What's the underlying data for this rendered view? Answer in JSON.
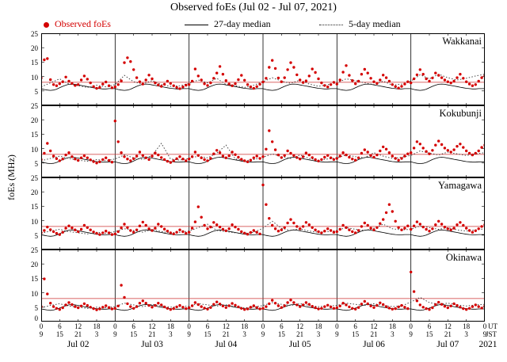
{
  "title": "Observed foEs (Jul 02 - Jul 07, 2021)",
  "legend": {
    "observed": "Observed foEs",
    "median27": "27-day median",
    "median5": "5-day median"
  },
  "y_axis": {
    "label": "foEs (MHz)",
    "ticks": [
      25,
      20,
      15,
      10,
      5
    ],
    "bottom_label": "0"
  },
  "x_axis": {
    "ut_ticks": [
      0,
      6,
      12,
      18
    ],
    "jst_ticks": [
      9,
      15,
      21,
      3
    ],
    "days": [
      "Jul 02",
      "Jul 03",
      "Jul 04",
      "Jul 05",
      "Jul 06",
      "Jul 07"
    ],
    "unit_top": "UT",
    "unit_bottom": "JST",
    "year": "2021"
  },
  "colors": {
    "observed": "#d40000",
    "median27": "#000000",
    "median5": "#333333",
    "threshold": "#cc3333"
  },
  "chart_data": {
    "type": "scatter",
    "title": "Observed foEs (Jul 02 - Jul 07, 2021)",
    "ylabel": "foEs (MHz)",
    "ylim": [
      0,
      25
    ],
    "x_range_hours": [
      0,
      144
    ],
    "x_days": [
      "Jul 02",
      "Jul 03",
      "Jul 04",
      "Jul 05",
      "Jul 06",
      "Jul 07"
    ],
    "threshold_line_mhz": 8,
    "legend_position": "top",
    "grid": "vertical lines at day boundaries",
    "panels": [
      {
        "station": "Wakkanai",
        "observed_hourly": [
          9.5,
          15.8,
          16.2,
          8.9,
          7.2,
          6.8,
          7.5,
          8.2,
          9.8,
          8.4,
          7.6,
          6.9,
          7.2,
          8.8,
          10.2,
          9.1,
          7.8,
          6.5,
          5.9,
          6.2,
          7.4,
          8.1,
          6.8,
          6.1,
          6.4,
          7.2,
          8.5,
          14.8,
          16.5,
          15.2,
          12.4,
          9.6,
          8.2,
          7.4,
          8.8,
          10.5,
          9.2,
          7.8,
          7.1,
          6.6,
          7.3,
          8.4,
          7.6,
          6.8,
          6.2,
          5.8,
          6.4,
          7.0,
          7.2,
          8.4,
          12.6,
          10.2,
          8.8,
          7.5,
          6.9,
          7.8,
          9.4,
          11.2,
          13.5,
          10.8,
          8.6,
          7.4,
          6.8,
          7.5,
          8.9,
          10.4,
          8.7,
          7.2,
          6.4,
          5.9,
          6.5,
          7.3,
          8.1,
          9.4,
          13.2,
          15.6,
          12.8,
          9.5,
          8.2,
          9.6,
          12.4,
          14.8,
          13.2,
          10.6,
          8.8,
          7.9,
          8.5,
          10.2,
          12.6,
          11.4,
          9.2,
          7.8,
          6.9,
          6.4,
          7.2,
          8.0,
          7.4,
          8.8,
          11.5,
          13.8,
          10.4,
          8.6,
          7.5,
          8.4,
          10.8,
          12.5,
          11.2,
          9.4,
          8.2,
          7.6,
          8.8,
          10.5,
          9.6,
          8.4,
          7.2,
          6.5,
          6.0,
          6.6,
          7.4,
          8.2,
          7.8,
          9.2,
          10.6,
          12.4,
          10.8,
          9.2,
          8.4,
          9.5,
          11.2,
          10.4,
          9.6,
          8.8,
          8.2,
          7.8,
          8.4,
          9.6,
          10.8,
          9.4,
          8.2,
          7.4,
          6.8,
          7.2,
          8.4,
          9.6,
          10.2
        ],
        "median27_diurnal": [
          5.8,
          5.5,
          5.3,
          5.2,
          5.3,
          5.6,
          6.1,
          6.6,
          7.0,
          7.3,
          7.4,
          7.3,
          7.1,
          6.9,
          6.7,
          6.5,
          6.3,
          6.1,
          5.9,
          5.8,
          5.7,
          5.7,
          5.8,
          5.8
        ],
        "median5_3hourly": [
          6.4,
          7.8,
          9.2,
          7.4,
          6.8,
          6.2,
          7.0,
          6.4,
          7.2,
          10.4,
          8.2,
          7.4,
          8.6,
          7.2,
          6.6,
          6.8,
          7.6,
          8.8,
          7.8,
          9.4,
          7.2,
          6.8,
          6.2,
          7.0,
          8.2,
          9.6,
          8.4,
          7.6,
          8.8,
          7.4,
          6.6,
          7.2,
          7.8,
          9.2,
          8.6,
          7.8,
          7.2,
          8.4,
          7.0,
          7.4,
          8.4,
          10.6,
          9.2,
          10.8,
          9.6,
          8.8,
          9.4,
          10.2,
          10.8
        ]
      },
      {
        "station": "Kokubunji",
        "observed_hourly": [
          6.2,
          8.4,
          11.8,
          9.2,
          7.4,
          6.5,
          5.8,
          6.4,
          7.8,
          8.6,
          7.2,
          6.4,
          5.9,
          6.8,
          7.5,
          6.8,
          6.1,
          5.5,
          5.0,
          5.4,
          6.2,
          6.8,
          5.9,
          5.3,
          19.6,
          12.4,
          8.6,
          7.2,
          6.4,
          5.8,
          6.5,
          7.4,
          8.8,
          7.6,
          6.8,
          6.2,
          7.4,
          8.5,
          7.8,
          6.9,
          6.2,
          5.6,
          5.2,
          5.8,
          6.5,
          7.2,
          6.4,
          5.8,
          6.4,
          7.2,
          8.8,
          7.6,
          6.8,
          6.2,
          5.8,
          6.6,
          8.2,
          9.4,
          8.6,
          7.4,
          6.8,
          7.5,
          8.8,
          7.9,
          7.0,
          6.3,
          5.8,
          5.4,
          6.0,
          6.8,
          7.4,
          6.6,
          7.2,
          9.8,
          16.2,
          12.4,
          9.6,
          7.8,
          6.9,
          7.6,
          9.2,
          8.4,
          7.6,
          6.9,
          6.4,
          7.2,
          8.5,
          7.8,
          6.9,
          6.2,
          5.7,
          6.2,
          7.0,
          7.6,
          6.8,
          6.2,
          6.6,
          7.4,
          8.6,
          7.8,
          7.0,
          6.4,
          6.0,
          6.8,
          8.4,
          9.6,
          8.8,
          7.6,
          7.0,
          7.8,
          9.2,
          10.6,
          9.8,
          8.6,
          7.4,
          6.6,
          6.0,
          6.6,
          7.4,
          8.2,
          8.6,
          10.2,
          12.4,
          11.6,
          10.2,
          9.0,
          8.2,
          9.4,
          11.2,
          12.6,
          11.4,
          10.2,
          9.4,
          8.8,
          9.6,
          10.8,
          11.6,
          10.4,
          9.2,
          8.4,
          7.8,
          8.4,
          9.2,
          10.4,
          11.2
        ],
        "median27_diurnal": [
          5.4,
          5.1,
          4.9,
          4.8,
          4.9,
          5.2,
          5.7,
          6.2,
          6.6,
          6.9,
          7.0,
          6.9,
          6.7,
          6.5,
          6.3,
          6.1,
          5.9,
          5.7,
          5.5,
          5.4,
          5.3,
          5.3,
          5.4,
          5.4
        ],
        "median5_3hourly": [
          5.8,
          6.6,
          7.4,
          6.6,
          6.0,
          5.6,
          6.2,
          5.8,
          6.4,
          7.8,
          6.8,
          6.2,
          7.6,
          11.8,
          6.4,
          6.0,
          6.6,
          7.4,
          6.8,
          8.4,
          11.2,
          6.4,
          5.8,
          6.2,
          7.0,
          8.2,
          7.2,
          6.6,
          7.8,
          6.6,
          6.0,
          6.4,
          6.8,
          7.8,
          7.2,
          6.8,
          8.6,
          7.4,
          6.6,
          7.0,
          7.6,
          9.2,
          8.4,
          7.8,
          8.8,
          8.2,
          7.6,
          8.2,
          8.6
        ]
      },
      {
        "station": "Yamagawa",
        "observed_hourly": [
          5.8,
          6.6,
          7.8,
          6.9,
          6.2,
          5.6,
          5.2,
          6.0,
          7.4,
          8.2,
          7.5,
          6.8,
          6.2,
          7.0,
          8.4,
          7.6,
          6.8,
          6.1,
          5.6,
          5.2,
          5.8,
          6.4,
          5.8,
          5.2,
          5.4,
          6.2,
          7.5,
          8.8,
          7.6,
          6.6,
          6.0,
          6.8,
          8.2,
          9.5,
          8.4,
          7.2,
          6.6,
          7.4,
          8.8,
          8.0,
          7.1,
          6.4,
          5.8,
          5.4,
          6.0,
          6.8,
          6.2,
          5.6,
          6.0,
          7.4,
          9.6,
          14.8,
          11.2,
          8.4,
          7.2,
          7.8,
          9.4,
          8.6,
          7.8,
          7.0,
          6.5,
          7.2,
          8.6,
          7.8,
          7.0,
          6.2,
          5.7,
          5.3,
          5.9,
          6.6,
          6.0,
          5.4,
          22.4,
          15.6,
          10.8,
          8.4,
          7.2,
          6.4,
          6.8,
          7.6,
          9.2,
          10.4,
          9.2,
          8.0,
          7.2,
          8.0,
          9.4,
          8.6,
          7.6,
          6.8,
          6.2,
          5.8,
          6.4,
          7.2,
          6.6,
          6.0,
          6.2,
          7.0,
          8.4,
          7.6,
          6.8,
          6.2,
          5.8,
          6.6,
          8.0,
          9.2,
          8.4,
          7.4,
          6.8,
          7.6,
          9.0,
          10.4,
          12.8,
          15.6,
          13.2,
          9.8,
          7.6,
          6.8,
          7.4,
          8.2,
          7.0,
          8.2,
          9.6,
          8.8,
          7.8,
          7.0,
          6.4,
          7.2,
          8.6,
          9.8,
          8.8,
          7.8,
          7.2,
          6.8,
          7.4,
          8.6,
          9.4,
          8.4,
          7.4,
          6.6,
          6.0,
          6.5,
          7.2,
          8.0,
          8.6
        ],
        "median27_diurnal": [
          5.2,
          4.9,
          4.7,
          4.6,
          4.7,
          5.0,
          5.5,
          6.0,
          6.4,
          6.7,
          6.8,
          6.7,
          6.5,
          6.3,
          6.1,
          5.9,
          5.7,
          5.5,
          5.3,
          5.2,
          5.1,
          5.1,
          5.2,
          5.2
        ],
        "median5_3hourly": [
          5.6,
          6.4,
          7.0,
          6.2,
          5.8,
          5.4,
          6.0,
          5.6,
          6.2,
          7.2,
          6.6,
          6.0,
          7.0,
          6.2,
          5.8,
          6.0,
          6.4,
          7.6,
          8.8,
          6.6,
          6.2,
          5.8,
          5.6,
          6.0,
          7.4,
          9.8,
          7.4,
          6.6,
          7.2,
          6.4,
          6.0,
          6.2,
          6.6,
          7.6,
          7.0,
          6.6,
          7.4,
          8.8,
          7.2,
          6.8,
          7.0,
          8.2,
          7.6,
          7.0,
          7.6,
          6.8,
          6.4,
          6.8,
          7.2
        ]
      },
      {
        "station": "Okinawa",
        "observed_hourly": [
          5.2,
          14.8,
          9.6,
          6.4,
          5.2,
          4.6,
          4.2,
          4.8,
          5.8,
          6.6,
          5.9,
          5.2,
          4.8,
          5.4,
          6.2,
          5.6,
          5.0,
          4.5,
          4.1,
          4.4,
          5.0,
          5.5,
          4.9,
          4.4,
          4.6,
          5.4,
          12.6,
          8.4,
          6.2,
          5.2,
          4.6,
          5.2,
          6.4,
          7.2,
          6.4,
          5.6,
          5.0,
          5.6,
          6.4,
          5.8,
          5.1,
          4.6,
          4.2,
          4.5,
          5.1,
          5.6,
          5.0,
          4.5,
          4.8,
          5.5,
          6.6,
          5.9,
          5.2,
          4.7,
          4.3,
          4.9,
          6.0,
          6.8,
          6.1,
          5.4,
          4.9,
          5.5,
          6.3,
          5.7,
          5.1,
          4.6,
          4.2,
          4.4,
          5.0,
          5.5,
          4.9,
          4.4,
          4.6,
          5.2,
          6.2,
          7.4,
          6.4,
          5.5,
          4.9,
          5.5,
          6.6,
          7.5,
          6.6,
          5.8,
          5.2,
          5.8,
          6.6,
          6.0,
          5.3,
          4.8,
          4.4,
          4.6,
          5.2,
          5.7,
          5.1,
          4.6,
          4.8,
          5.4,
          6.4,
          5.8,
          5.1,
          4.6,
          4.3,
          4.9,
          6.1,
          7.0,
          6.2,
          5.4,
          4.9,
          5.6,
          6.5,
          5.9,
          5.2,
          4.7,
          4.3,
          4.5,
          5.1,
          5.6,
          5.0,
          4.5,
          17.2,
          10.4,
          7.2,
          5.8,
          5.0,
          4.5,
          4.2,
          4.8,
          5.9,
          6.7,
          6.0,
          5.3,
          4.8,
          5.4,
          6.2,
          5.6,
          5.0,
          4.5,
          4.2,
          4.6,
          5.2,
          5.8,
          5.2,
          4.7,
          5.4
        ],
        "median27_diurnal": [
          4.4,
          4.2,
          4.0,
          3.9,
          4.0,
          4.3,
          4.7,
          5.1,
          5.5,
          5.8,
          5.9,
          5.8,
          5.6,
          5.4,
          5.2,
          5.0,
          4.8,
          4.6,
          4.5,
          4.4,
          4.3,
          4.3,
          4.4,
          4.4
        ],
        "median5_3hourly": [
          4.8,
          5.6,
          6.2,
          5.4,
          5.0,
          4.6,
          5.0,
          4.8,
          5.2,
          6.4,
          5.8,
          5.2,
          6.0,
          5.4,
          5.0,
          5.2,
          5.4,
          6.2,
          5.8,
          5.4,
          5.8,
          5.2,
          4.8,
          5.0,
          5.6,
          6.6,
          6.0,
          5.6,
          6.2,
          5.6,
          5.2,
          5.4,
          5.6,
          6.4,
          6.0,
          5.6,
          6.2,
          5.6,
          5.2,
          5.4,
          6.8,
          8.4,
          6.6,
          6.0,
          6.4,
          5.8,
          5.4,
          5.8,
          6.0
        ]
      }
    ]
  }
}
